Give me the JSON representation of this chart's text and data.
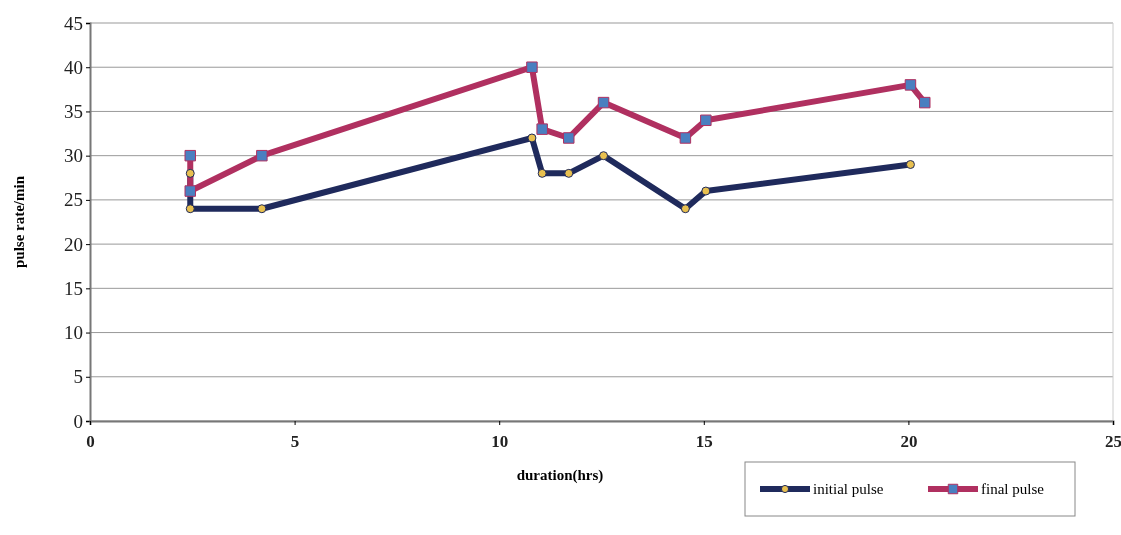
{
  "chart_data": {
    "type": "line",
    "xlabel": "duration(hrs)",
    "ylabel": "pulse rate/min",
    "xlim": [
      0,
      25
    ],
    "xticks": [
      0,
      5,
      10,
      15,
      20,
      25
    ],
    "ylim": [
      0,
      45
    ],
    "yticks": [
      0,
      5,
      10,
      15,
      20,
      25,
      30,
      35,
      40,
      45
    ],
    "grid": "y",
    "legend": "bottom right",
    "line_style": "solid",
    "series": [
      {
        "name": "initial pulse",
        "color": "#1f2a5c",
        "marker": "circle",
        "x": [
          2.45,
          2.45,
          4.2,
          10.8,
          11.05,
          11.7,
          12.55,
          14.55,
          15.05,
          20.05
        ],
        "values": [
          28,
          24,
          24,
          32,
          28,
          28,
          30,
          24,
          26,
          29
        ]
      },
      {
        "name": "final pulse",
        "color": "#b03060",
        "marker": "square",
        "x": [
          2.45,
          2.45,
          4.2,
          10.8,
          11.05,
          11.7,
          12.55,
          14.55,
          15.05,
          20.05,
          20.4
        ],
        "values": [
          30,
          26,
          30,
          40,
          33,
          32,
          36,
          32,
          34,
          38,
          36
        ]
      }
    ]
  }
}
